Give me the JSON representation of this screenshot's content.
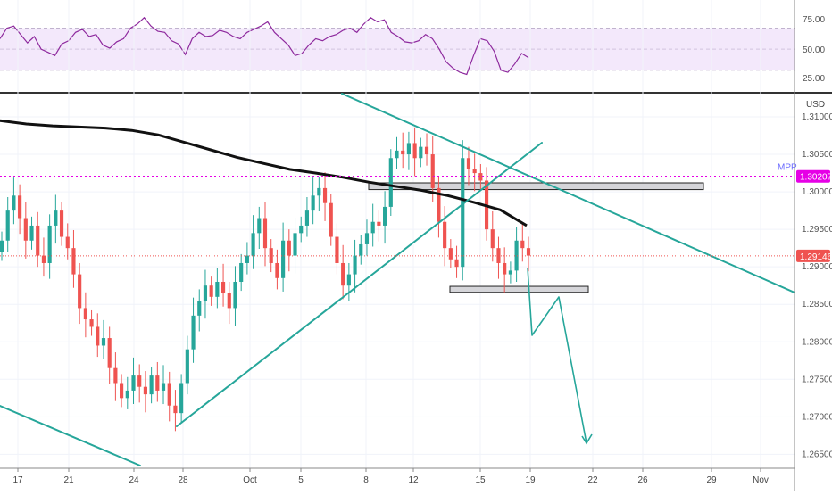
{
  "chart_data": [
    {
      "type": "line",
      "panel": "rsi",
      "series": [
        {
          "values": [
            60,
            70,
            72,
            64,
            56,
            62,
            50,
            47,
            44,
            55,
            58,
            66,
            69,
            62,
            64,
            54,
            51,
            57,
            60,
            70,
            74,
            80,
            72,
            67,
            66,
            58,
            55,
            45,
            60,
            66,
            62,
            63,
            68,
            66,
            62,
            60,
            66,
            69,
            72,
            76,
            66,
            60,
            54,
            44,
            46,
            54,
            60,
            58,
            62,
            64,
            68,
            70,
            66,
            74,
            80,
            76,
            78,
            66,
            62,
            57,
            56,
            58,
            64,
            60,
            50,
            38,
            32,
            28,
            26,
            44,
            60,
            58,
            48,
            30,
            28,
            36,
            46,
            42
          ]
        }
      ],
      "ylim": [
        12,
        90
      ],
      "y_ticks": [
        "75.00",
        "50.00",
        "25.00"
      ],
      "band": [
        30,
        70
      ],
      "colors": {
        "line": "#8e2a9e",
        "band": "#f3e8fb",
        "band_edge": "#b8a7c8"
      }
    },
    {
      "type": "candlestick",
      "panel": "price",
      "currency_label": "USD",
      "ylim": [
        1.2635,
        1.3125
      ],
      "y_ticks": [
        "1.31000",
        "1.30500",
        "1.30000",
        "1.29500",
        "1.29000",
        "1.28500",
        "1.28000",
        "1.27500",
        "1.27000",
        "1.26500"
      ],
      "x_ticks": [
        "17",
        "21",
        "24",
        "28",
        "Oct",
        "5",
        "8",
        "12",
        "15",
        "19",
        "22",
        "26",
        "29",
        "Nov"
      ],
      "close": [
        1.2935,
        1.2975,
        1.2995,
        1.2965,
        1.2935,
        1.2955,
        1.2915,
        1.2905,
        1.2955,
        1.2975,
        1.294,
        1.2925,
        1.289,
        1.2845,
        1.283,
        1.282,
        1.2795,
        1.2805,
        1.2765,
        1.2745,
        1.2725,
        1.2735,
        1.2755,
        1.274,
        1.273,
        1.2755,
        1.2735,
        1.2745,
        1.2715,
        1.2705,
        1.2745,
        1.279,
        1.2835,
        1.2855,
        1.2875,
        1.286,
        1.288,
        1.2865,
        1.2845,
        1.288,
        1.2905,
        1.2915,
        1.2945,
        1.2965,
        1.2925,
        1.2905,
        1.2885,
        1.2935,
        1.2915,
        1.2945,
        1.2955,
        1.2975,
        1.2995,
        1.3005,
        1.2985,
        1.294,
        1.2905,
        1.2875,
        1.289,
        1.2915,
        1.293,
        1.2945,
        1.296,
        1.2955,
        1.298,
        1.3045,
        1.3055,
        1.305,
        1.3065,
        1.3045,
        1.306,
        1.305,
        1.3005,
        1.296,
        1.2925,
        1.291,
        1.29,
        1.3045,
        1.303,
        1.3025,
        1.3015,
        1.295,
        1.2925,
        1.2905,
        1.289,
        1.2895,
        1.2935,
        1.2925,
        1.2915
      ],
      "up_color": "#26a69a",
      "down_color": "#ef5350",
      "moving_average": {
        "values": [
          1.3095,
          1.30905,
          1.3088,
          1.30865,
          1.3085,
          1.3082,
          1.3076,
          1.3066,
          1.3056,
          1.3046,
          1.3038,
          1.303,
          1.3025,
          1.30195,
          1.3013,
          1.30075,
          1.3002,
          1.2995,
          1.2986,
          1.2976,
          1.2955
        ],
        "color": "#111111"
      },
      "last_price": {
        "label": "1.29146",
        "value": 1.29146,
        "color": "#ef5350"
      },
      "mpp": {
        "label": "MPP",
        "price_label": "1.30207",
        "value": 1.30207,
        "color": "#e600e6"
      },
      "zones": [
        {
          "from": 1.3003,
          "to": 1.3012
        },
        {
          "from": 1.2866,
          "to": 1.2874
        }
      ],
      "annotation_color": "#26a69a"
    }
  ]
}
